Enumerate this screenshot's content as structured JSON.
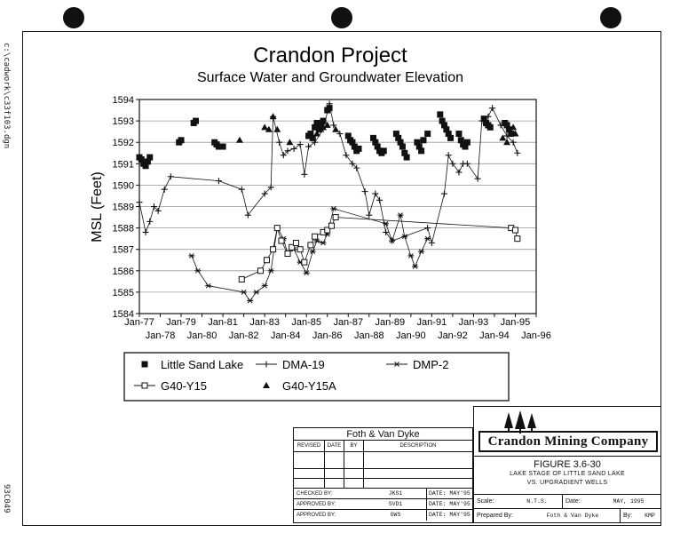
{
  "sheet": {
    "path_label": "c:\\cadwork\\c33f103.dgn",
    "code_label": "93C049"
  },
  "chart_data": {
    "type": "scatter",
    "title": "Crandon Project",
    "subtitle": "Surface Water and Groundwater Elevation",
    "ylabel": "MSL (Feet)",
    "xlabel": "",
    "x_range": [
      1977,
      1996
    ],
    "ylim": [
      1584,
      1594
    ],
    "y_ticks": [
      1584,
      1585,
      1586,
      1587,
      1588,
      1589,
      1590,
      1591,
      1592,
      1593,
      1594
    ],
    "x_ticks": [
      {
        "label": "Jan-77",
        "x": 1977
      },
      {
        "label": "Jan-78",
        "x": 1978
      },
      {
        "label": "Jan-79",
        "x": 1979
      },
      {
        "label": "Jan-80",
        "x": 1980
      },
      {
        "label": "Jan-81",
        "x": 1981
      },
      {
        "label": "Jan-82",
        "x": 1982
      },
      {
        "label": "Jan-83",
        "x": 1983
      },
      {
        "label": "Jan-84",
        "x": 1984
      },
      {
        "label": "Jan-85",
        "x": 1985
      },
      {
        "label": "Jan-86",
        "x": 1986
      },
      {
        "label": "Jan-87",
        "x": 1987
      },
      {
        "label": "Jan-88",
        "x": 1988
      },
      {
        "label": "Jan-89",
        "x": 1989
      },
      {
        "label": "Jan-90",
        "x": 1990
      },
      {
        "label": "Jan-91",
        "x": 1991
      },
      {
        "label": "Jan-92",
        "x": 1992
      },
      {
        "label": "Jan-93",
        "x": 1993
      },
      {
        "label": "Jan-94",
        "x": 1994
      },
      {
        "label": "Jan-95",
        "x": 1995
      },
      {
        "label": "Jan-96",
        "x": 1996
      }
    ],
    "grid": "horizontal",
    "legend_position": "bottom",
    "series": [
      {
        "name": "Little Sand Lake",
        "marker": "square-filled",
        "connected": false,
        "points": [
          [
            1977.0,
            1591.3
          ],
          [
            1977.1,
            1591.2
          ],
          [
            1977.2,
            1591.0
          ],
          [
            1977.3,
            1590.9
          ],
          [
            1977.4,
            1591.1
          ],
          [
            1977.5,
            1591.3
          ],
          [
            1978.9,
            1592.0
          ],
          [
            1979.0,
            1592.1
          ],
          [
            1979.6,
            1592.9
          ],
          [
            1979.7,
            1593.0
          ],
          [
            1980.6,
            1592.0
          ],
          [
            1980.7,
            1591.9
          ],
          [
            1980.8,
            1591.8
          ],
          [
            1981.0,
            1591.8
          ],
          [
            1985.1,
            1592.3
          ],
          [
            1985.2,
            1592.4
          ],
          [
            1985.3,
            1592.2
          ],
          [
            1985.4,
            1592.7
          ],
          [
            1985.5,
            1592.9
          ],
          [
            1985.6,
            1592.6
          ],
          [
            1985.7,
            1592.8
          ],
          [
            1985.8,
            1593.0
          ],
          [
            1986.0,
            1593.5
          ],
          [
            1986.1,
            1593.6
          ],
          [
            1987.0,
            1592.3
          ],
          [
            1987.1,
            1592.1
          ],
          [
            1987.2,
            1592.0
          ],
          [
            1987.3,
            1591.8
          ],
          [
            1987.4,
            1591.6
          ],
          [
            1987.5,
            1591.7
          ],
          [
            1988.2,
            1592.2
          ],
          [
            1988.3,
            1592.0
          ],
          [
            1988.4,
            1591.8
          ],
          [
            1988.5,
            1591.6
          ],
          [
            1988.6,
            1591.5
          ],
          [
            1988.7,
            1591.6
          ],
          [
            1989.3,
            1592.4
          ],
          [
            1989.4,
            1592.2
          ],
          [
            1989.5,
            1592.0
          ],
          [
            1989.6,
            1591.8
          ],
          [
            1989.7,
            1591.5
          ],
          [
            1989.8,
            1591.3
          ],
          [
            1990.3,
            1592.0
          ],
          [
            1990.4,
            1591.8
          ],
          [
            1990.5,
            1591.6
          ],
          [
            1990.6,
            1592.1
          ],
          [
            1990.8,
            1592.4
          ],
          [
            1991.4,
            1593.3
          ],
          [
            1991.5,
            1593.0
          ],
          [
            1991.6,
            1592.8
          ],
          [
            1991.7,
            1592.6
          ],
          [
            1991.8,
            1592.4
          ],
          [
            1991.9,
            1592.2
          ],
          [
            1992.3,
            1592.4
          ],
          [
            1992.4,
            1592.1
          ],
          [
            1992.5,
            1591.9
          ],
          [
            1992.6,
            1591.8
          ],
          [
            1992.7,
            1592.0
          ],
          [
            1993.5,
            1593.1
          ],
          [
            1993.6,
            1592.9
          ],
          [
            1993.7,
            1592.8
          ],
          [
            1993.8,
            1592.7
          ],
          [
            1994.5,
            1592.9
          ],
          [
            1994.6,
            1592.8
          ],
          [
            1994.7,
            1592.6
          ],
          [
            1994.8,
            1592.4
          ]
        ]
      },
      {
        "name": "DMA-19",
        "marker": "plus",
        "connected": true,
        "points": [
          [
            1977.0,
            1589.2
          ],
          [
            1977.3,
            1587.8
          ],
          [
            1977.5,
            1588.3
          ],
          [
            1977.7,
            1589.0
          ],
          [
            1977.9,
            1588.8
          ],
          [
            1978.2,
            1589.8
          ],
          [
            1978.5,
            1590.4
          ],
          [
            1980.8,
            1590.2
          ],
          [
            1981.9,
            1589.8
          ],
          [
            1982.2,
            1588.6
          ],
          [
            1983.0,
            1589.6
          ],
          [
            1983.3,
            1589.9
          ],
          [
            1983.4,
            1593.2
          ],
          [
            1983.7,
            1592.0
          ],
          [
            1983.9,
            1591.4
          ],
          [
            1984.1,
            1591.6
          ],
          [
            1984.4,
            1591.7
          ],
          [
            1984.7,
            1591.9
          ],
          [
            1984.9,
            1590.5
          ],
          [
            1985.1,
            1591.8
          ],
          [
            1985.4,
            1592.0
          ],
          [
            1985.8,
            1592.6
          ],
          [
            1986.1,
            1593.8
          ],
          [
            1986.3,
            1592.8
          ],
          [
            1986.6,
            1592.4
          ],
          [
            1986.9,
            1591.4
          ],
          [
            1987.2,
            1591.0
          ],
          [
            1987.4,
            1590.8
          ],
          [
            1987.8,
            1589.7
          ],
          [
            1988.0,
            1588.6
          ],
          [
            1988.3,
            1589.6
          ],
          [
            1988.5,
            1589.3
          ],
          [
            1988.8,
            1587.8
          ],
          [
            1989.1,
            1587.4
          ],
          [
            1990.8,
            1588.0
          ],
          [
            1991.0,
            1587.3
          ],
          [
            1991.6,
            1589.6
          ],
          [
            1991.8,
            1591.4
          ],
          [
            1992.0,
            1591.0
          ],
          [
            1992.3,
            1590.6
          ],
          [
            1992.5,
            1591.0
          ],
          [
            1992.7,
            1591.0
          ],
          [
            1993.2,
            1590.3
          ],
          [
            1993.4,
            1593.0
          ],
          [
            1993.7,
            1593.2
          ],
          [
            1993.9,
            1593.6
          ],
          [
            1994.3,
            1592.8
          ],
          [
            1994.6,
            1592.3
          ],
          [
            1994.9,
            1592.0
          ],
          [
            1995.1,
            1591.5
          ]
        ]
      },
      {
        "name": "DMP-2",
        "marker": "asterisk",
        "connected": true,
        "points": [
          [
            1979.5,
            1586.7
          ],
          [
            1979.8,
            1586.0
          ],
          [
            1980.3,
            1585.3
          ],
          [
            1982.0,
            1585.0
          ],
          [
            1982.3,
            1584.6
          ],
          [
            1982.6,
            1585.0
          ],
          [
            1983.0,
            1585.3
          ],
          [
            1983.3,
            1586.0
          ],
          [
            1983.6,
            1588.0
          ],
          [
            1983.9,
            1587.5
          ],
          [
            1984.1,
            1586.8
          ],
          [
            1984.4,
            1587.0
          ],
          [
            1984.7,
            1586.4
          ],
          [
            1985.0,
            1585.9
          ],
          [
            1985.3,
            1586.9
          ],
          [
            1985.5,
            1587.4
          ],
          [
            1985.8,
            1587.3
          ],
          [
            1986.0,
            1587.7
          ],
          [
            1986.3,
            1588.9
          ],
          [
            1988.8,
            1588.2
          ],
          [
            1989.1,
            1587.4
          ],
          [
            1989.5,
            1588.6
          ],
          [
            1989.7,
            1587.6
          ],
          [
            1990.0,
            1586.7
          ],
          [
            1990.2,
            1586.2
          ],
          [
            1990.5,
            1586.9
          ],
          [
            1990.8,
            1587.5
          ]
        ]
      },
      {
        "name": "G40-Y15",
        "marker": "square-open",
        "connected": true,
        "points": [
          [
            1981.9,
            1585.6
          ],
          [
            1982.8,
            1586.0
          ],
          [
            1983.1,
            1586.5
          ],
          [
            1983.4,
            1587.0
          ],
          [
            1983.6,
            1588.0
          ],
          [
            1983.8,
            1587.4
          ],
          [
            1984.1,
            1586.8
          ],
          [
            1984.3,
            1587.1
          ],
          [
            1984.5,
            1587.3
          ],
          [
            1984.7,
            1587.0
          ],
          [
            1984.9,
            1586.4
          ],
          [
            1985.2,
            1587.2
          ],
          [
            1985.4,
            1587.6
          ],
          [
            1985.8,
            1587.8
          ],
          [
            1986.0,
            1587.9
          ],
          [
            1986.2,
            1588.1
          ],
          [
            1986.4,
            1588.5
          ],
          [
            1994.8,
            1588.0
          ],
          [
            1995.0,
            1587.9
          ],
          [
            1995.1,
            1587.5
          ]
        ]
      },
      {
        "name": "G40-Y15A",
        "marker": "triangle-filled",
        "connected": false,
        "points": [
          [
            1981.8,
            1592.1
          ],
          [
            1983.0,
            1592.7
          ],
          [
            1983.2,
            1592.6
          ],
          [
            1983.4,
            1593.2
          ],
          [
            1983.6,
            1592.6
          ],
          [
            1984.2,
            1592.0
          ],
          [
            1985.5,
            1592.4
          ],
          [
            1985.8,
            1592.7
          ],
          [
            1986.0,
            1592.8
          ],
          [
            1986.4,
            1592.6
          ],
          [
            1994.4,
            1592.2
          ],
          [
            1994.6,
            1592.0
          ],
          [
            1994.9,
            1592.7
          ],
          [
            1995.0,
            1592.4
          ]
        ]
      }
    ]
  },
  "title_block": {
    "firm": "Foth & Van Dyke",
    "rev_headers": {
      "revised": "REVISED",
      "date": "DATE",
      "by": "BY",
      "description": "DESCRIPTION"
    },
    "signoffs": [
      {
        "label": "CHECKED BY:",
        "value": "JKS1",
        "date_label": "DATE:",
        "date": "MAY'95"
      },
      {
        "label": "APPROVED BY:",
        "value": "SVD1",
        "date_label": "DATE:",
        "date": "MAY'95"
      },
      {
        "label": "APPROVED BY:",
        "value": "GWS",
        "date_label": "DATE:",
        "date": "MAY'95"
      }
    ],
    "company": "Crandon Mining Company",
    "figure_no": "FIGURE 3.6-30",
    "figure_desc_1": "LAKE STAGE OF LITTLE SAND LAKE",
    "figure_desc_2": "VS. UPGRADIENT WELLS",
    "scale_label": "Scale:",
    "scale_value": "N.T.S.",
    "date_label": "Date:",
    "date_value": "MAY, 1995",
    "prepared_label": "Prepared By:",
    "prepared_value": "Foth & Van Dyke",
    "by_label": "By:",
    "by_value": "KMP"
  }
}
